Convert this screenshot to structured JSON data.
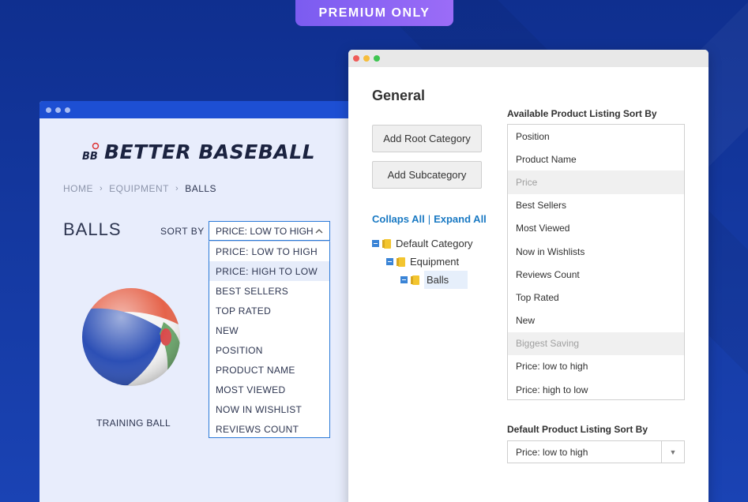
{
  "banner": {
    "label": "PREMIUM ONLY"
  },
  "storefront": {
    "logo_text": "BETTER BASEBALL",
    "logo_mark": "BB",
    "breadcrumb": [
      {
        "label": "HOME"
      },
      {
        "label": "EQUIPMENT"
      },
      {
        "label": "BALLS"
      }
    ],
    "category_title": "BALLS",
    "sort_label": "SORT BY",
    "sort_selected": "PRICE: LOW TO HIGH",
    "sort_options": [
      "PRICE: LOW TO HIGH",
      "PRICE: HIGH TO LOW",
      "BEST SELLERS",
      "TOP RATED",
      "NEW",
      "POSITION",
      "PRODUCT NAME",
      "MOST VIEWED",
      "NOW IN WISHLIST",
      "REVIEWS COUNT"
    ],
    "highlighted_option_index": 1,
    "product": {
      "name": "TRAINING BALL"
    }
  },
  "admin": {
    "section_title": "General",
    "buttons": {
      "add_root": "Add Root Category",
      "add_sub": "Add Subcategory"
    },
    "tree_links": {
      "collapse": "Collaps All",
      "separator": "|",
      "expand": "Expand All"
    },
    "tree": [
      {
        "label": "Default Category",
        "level": 0
      },
      {
        "label": "Equipment",
        "level": 1
      },
      {
        "label": "Balls",
        "level": 2,
        "selected": true
      }
    ],
    "available_label": "Available Product Listing Sort By",
    "available_options": [
      {
        "label": "Position",
        "disabled": false
      },
      {
        "label": "Product Name",
        "disabled": false
      },
      {
        "label": "Price",
        "disabled": true
      },
      {
        "label": "Best Sellers",
        "disabled": false
      },
      {
        "label": "Most Viewed",
        "disabled": false
      },
      {
        "label": "Now in Wishlists",
        "disabled": false
      },
      {
        "label": "Reviews Count",
        "disabled": false
      },
      {
        "label": "Top Rated",
        "disabled": false
      },
      {
        "label": "New",
        "disabled": false
      },
      {
        "label": "Biggest Saving",
        "disabled": true
      },
      {
        "label": "Price: low to high",
        "disabled": false
      },
      {
        "label": "Price: high to low",
        "disabled": false
      }
    ],
    "default_label": "Default Product Listing Sort By",
    "default_value": "Price: low to high"
  },
  "colors": {
    "background": "#1a43b4",
    "badge": "#8b63f4",
    "link": "#1979c3",
    "dropdown_border": "#2b7ad8"
  }
}
